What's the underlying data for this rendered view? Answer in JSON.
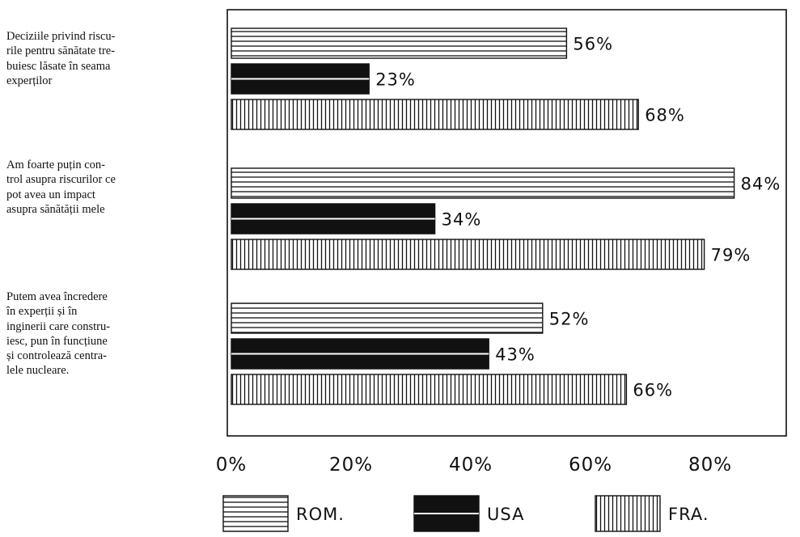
{
  "chart_data": {
    "type": "bar",
    "orientation": "horizontal",
    "title": "",
    "xlabel": "",
    "ylabel": "",
    "xlim": [
      0,
      80
    ],
    "x_ticks": [
      "0%",
      "20%",
      "40%",
      "60%",
      "80%"
    ],
    "categories": [
      "Deciziile privind riscurile pentru sănătate trebuiesc lăsate în seama experților",
      "Am foarte puțin control asupra riscurilor ce pot avea un impact asupra sănătății mele",
      "Putem avea încredere în experții și în inginerii care construiesc, pun în funcțiune și controlează centralele nucleare."
    ],
    "question_lines": [
      [
        "Deciziile privind riscu-",
        "rile pentru sănătate tre-",
        "buiesc lăsate în seama",
        "experților"
      ],
      [
        "Am foarte puțin con-",
        "trol asupra riscurilor ce",
        "pot avea un impact",
        "asupra sănătății mele"
      ],
      [
        "Putem avea încredere",
        "în experții și în",
        "inginerii care constru-",
        "iesc, pun în funcțiune",
        "și controlează centra-",
        "lele nucleare."
      ]
    ],
    "series": [
      {
        "name": "ROM.",
        "pattern": "horizontal-lines",
        "values": [
          56,
          84,
          52
        ],
        "labels": [
          "56%",
          "84%",
          "52%"
        ]
      },
      {
        "name": "USA",
        "pattern": "solid-black",
        "values": [
          23,
          34,
          43
        ],
        "labels": [
          "23%",
          "34%",
          "43%"
        ]
      },
      {
        "name": "FRA.",
        "pattern": "vertical-lines",
        "values": [
          68,
          79,
          66
        ],
        "labels": [
          "68%",
          "79%",
          "66%"
        ]
      }
    ],
    "legend_position": "bottom",
    "grid": false
  }
}
